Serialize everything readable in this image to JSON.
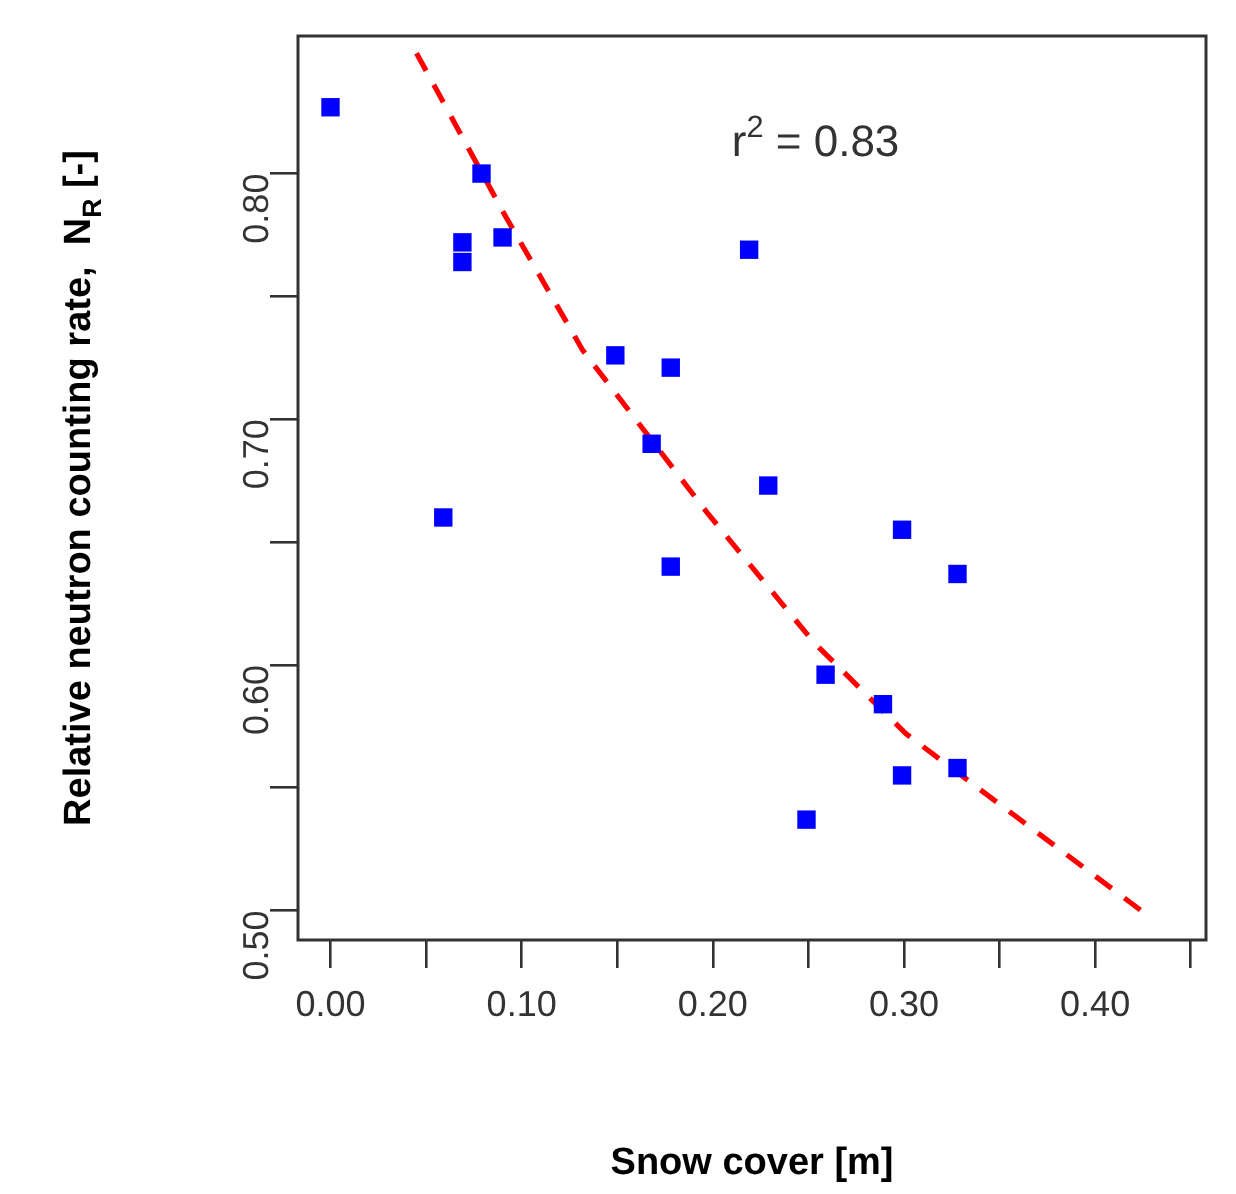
{
  "chart_data": {
    "type": "scatter",
    "xlabel": "Snow cover [m]",
    "ylabel": "Relative neutron counting rate,  N$_{R}$ [-]",
    "xlim": [
      -0.017,
      0.458
    ],
    "ylim": [
      0.488,
      0.856
    ],
    "xticks": [
      {
        "value": 0,
        "label": "0.00"
      },
      {
        "value": 0.05,
        "label": null
      },
      {
        "value": 0.1,
        "label": "0.10"
      },
      {
        "value": 0.15,
        "label": null
      },
      {
        "value": 0.2,
        "label": "0.20"
      },
      {
        "value": 0.25,
        "label": null
      },
      {
        "value": 0.3,
        "label": "0.30"
      },
      {
        "value": 0.35,
        "label": null
      },
      {
        "value": 0.4,
        "label": "0.40"
      },
      {
        "value": 0.45,
        "label": null
      }
    ],
    "yticks": [
      {
        "value": 0.5,
        "label": "0.50"
      },
      {
        "value": 0.55,
        "label": null
      },
      {
        "value": 0.6,
        "label": "0.60"
      },
      {
        "value": 0.65,
        "label": null
      },
      {
        "value": 0.7,
        "label": "0.70"
      },
      {
        "value": 0.75,
        "label": null
      },
      {
        "value": 0.8,
        "label": "0.80"
      }
    ],
    "marker": "square",
    "grid": false,
    "legend": false,
    "annotations": [
      "r$^{2}$ = 0.83"
    ],
    "series": [
      {
        "type": "scatter",
        "color": "#0000ff",
        "x": [
          0.0,
          0.079,
          0.069,
          0.069,
          0.09,
          0.219,
          0.149,
          0.178,
          0.168,
          0.229,
          0.059,
          0.299,
          0.178,
          0.328,
          0.259,
          0.289,
          0.299,
          0.328,
          0.249
        ],
        "values": [
          0.827,
          0.8,
          0.772,
          0.764,
          0.774,
          0.769,
          0.726,
          0.721,
          0.69,
          0.673,
          0.66,
          0.655,
          0.64,
          0.637,
          0.596,
          0.584,
          0.555,
          0.558,
          0.537
        ]
      },
      {
        "type": "line",
        "color": "#ff0000",
        "line_style": "dashed",
        "marker": "none",
        "x": [
          0.045,
          0.092,
          0.132,
          0.197,
          0.253,
          0.301,
          0.371,
          0.424
        ],
        "values": [
          0.849,
          0.782,
          0.728,
          0.662,
          0.609,
          0.572,
          0.531,
          0.5
        ]
      }
    ]
  }
}
